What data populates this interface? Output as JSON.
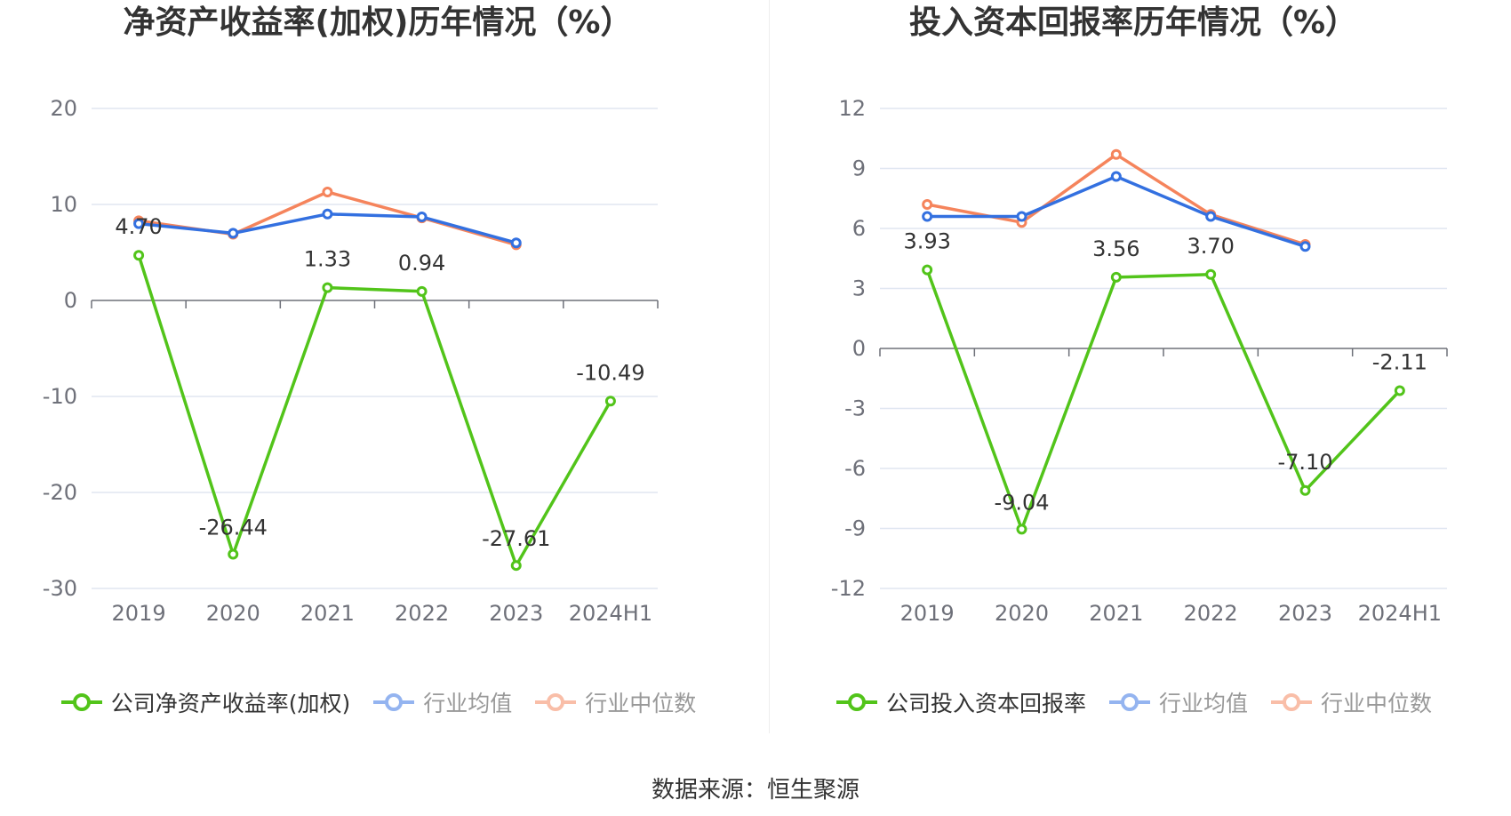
{
  "source_text": "数据来源：恒生聚源",
  "colors": {
    "company": "#52c41a",
    "avg": "#3370e0",
    "median": "#f5845c",
    "grid": "#e0e6f1",
    "axis": "#6e7079"
  },
  "chart_data": [
    {
      "type": "line",
      "title": "净资产收益率(加权)历年情况（%）",
      "categories": [
        "2019",
        "2020",
        "2021",
        "2022",
        "2023",
        "2024H1"
      ],
      "ylim": [
        -30,
        20
      ],
      "yticks": [
        -30,
        -20,
        -10,
        0,
        10,
        20
      ],
      "ytick_labels": [
        "-30",
        "-20",
        "-10",
        "0",
        "10",
        "20"
      ],
      "grid": true,
      "legend_position": "bottom",
      "series": [
        {
          "name": "公司净资产收益率(加权)",
          "key": "company",
          "values": [
            4.7,
            -26.44,
            1.33,
            0.94,
            -27.61,
            -10.49
          ],
          "labels": [
            "4.70",
            "-26.44",
            "1.33",
            "0.94",
            "-27.61",
            "-10.49"
          ]
        },
        {
          "name": "行业均值",
          "key": "avg",
          "values": [
            8.0,
            7.0,
            9.0,
            8.7,
            6.0,
            null
          ]
        },
        {
          "name": "行业中位数",
          "key": "median",
          "values": [
            8.3,
            6.9,
            11.3,
            8.6,
            5.8,
            null
          ]
        }
      ]
    },
    {
      "type": "line",
      "title": "投入资本回报率历年情况（%）",
      "categories": [
        "2019",
        "2020",
        "2021",
        "2022",
        "2023",
        "2024H1"
      ],
      "ylim": [
        -12,
        12
      ],
      "yticks": [
        -12,
        -9,
        -6,
        -3,
        0,
        3,
        6,
        9,
        12
      ],
      "ytick_labels": [
        "-12",
        "-9",
        "-6",
        "-3",
        "0",
        "3",
        "6",
        "9",
        "12"
      ],
      "grid": true,
      "legend_position": "bottom",
      "series": [
        {
          "name": "公司投入资本回报率",
          "key": "company",
          "values": [
            3.93,
            -9.04,
            3.56,
            3.7,
            -7.1,
            -2.11
          ],
          "labels": [
            "3.93",
            "-9.04",
            "3.56",
            "3.70",
            "-7.10",
            "-2.11"
          ]
        },
        {
          "name": "行业均值",
          "key": "avg",
          "values": [
            6.6,
            6.6,
            8.6,
            6.6,
            5.1,
            null
          ]
        },
        {
          "name": "行业中位数",
          "key": "median",
          "values": [
            7.2,
            6.3,
            9.7,
            6.7,
            5.2,
            null
          ]
        }
      ]
    }
  ]
}
